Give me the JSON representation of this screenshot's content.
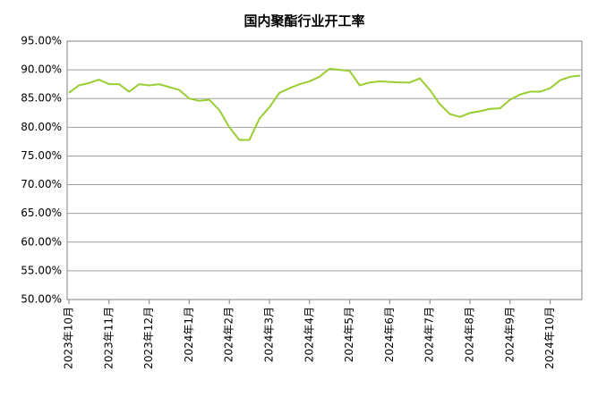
{
  "chart_data": {
    "type": "line",
    "title": "国内聚酯行业开工率",
    "categories": [
      "2023年10月",
      null,
      null,
      null,
      "2023年11月",
      null,
      null,
      null,
      "2023年12月",
      null,
      null,
      null,
      "2024年1月",
      null,
      null,
      null,
      "2024年2月",
      null,
      null,
      null,
      "2024年3月",
      null,
      null,
      null,
      "2024年4月",
      null,
      null,
      null,
      "2024年5月",
      null,
      null,
      null,
      "2024年6月",
      null,
      null,
      null,
      "2024年7月",
      null,
      null,
      null,
      "2024年8月",
      null,
      null,
      null,
      "2024年9月",
      null,
      null,
      null,
      "2024年10月",
      null,
      null,
      null
    ],
    "series": [
      {
        "name": "开工率",
        "color": "#9acd32",
        "values": [
          86,
          87.3,
          87.7,
          88.3,
          87.5,
          87.5,
          86.2,
          87.5,
          87.3,
          87.5,
          87,
          86.5,
          85,
          84.6,
          84.8,
          83,
          80,
          77.8,
          77.8,
          81.5,
          83.5,
          86,
          86.8,
          87.5,
          88,
          88.8,
          90.2,
          90,
          89.8,
          87.3,
          87.8,
          88,
          87.9,
          87.8,
          87.8,
          88.5,
          86.5,
          84,
          82.3,
          81.8,
          82.5,
          82.8,
          83.2,
          83.3,
          84.8,
          85.7,
          86.2,
          86.2,
          86.8,
          88.2,
          88.8,
          89
        ]
      }
    ],
    "ylim": [
      50,
      95
    ],
    "yticks": [
      {
        "value": 50,
        "label": "50.00%"
      },
      {
        "value": 55,
        "label": "55.00%"
      },
      {
        "value": 60,
        "label": "60.00%"
      },
      {
        "value": 65,
        "label": "65.00%"
      },
      {
        "value": 70,
        "label": "70.00%"
      },
      {
        "value": 75,
        "label": "75.00%"
      },
      {
        "value": 80,
        "label": "80.00%"
      },
      {
        "value": 85,
        "label": "85.00%"
      },
      {
        "value": 90,
        "label": "90.00%"
      },
      {
        "value": 95,
        "label": "95.00%"
      }
    ],
    "grid": true
  }
}
